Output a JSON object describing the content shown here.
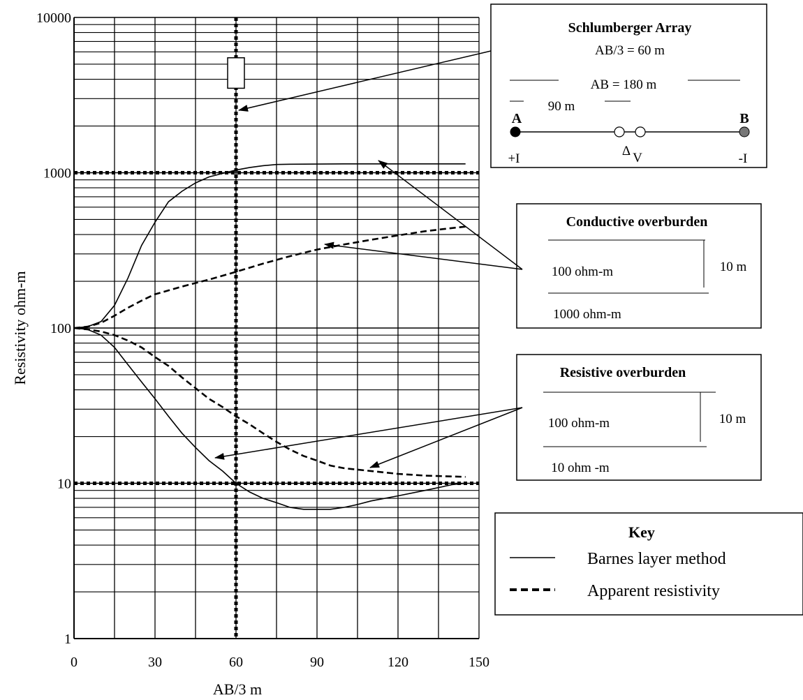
{
  "chart_data": {
    "type": "line",
    "xlabel": "AB/3 m",
    "ylabel": "Resistivity ohm-m",
    "xlim": [
      0,
      150
    ],
    "ylim": [
      1,
      10000
    ],
    "yscale": "log",
    "grid": true,
    "x_ticks": [
      "0",
      "30",
      "60",
      "90",
      "120",
      "150"
    ],
    "y_ticks": [
      "1",
      "10",
      "100",
      "1000",
      "10000"
    ],
    "series": [
      {
        "group": "conductive",
        "style": "solid",
        "x": [
          0,
          5,
          10,
          15,
          20,
          25,
          30,
          35,
          40,
          45,
          50,
          55,
          60,
          65,
          70,
          75,
          80,
          100,
          120,
          145
        ],
        "values": [
          100,
          102,
          110,
          140,
          210,
          340,
          480,
          650,
          760,
          860,
          940,
          990,
          1040,
          1080,
          1110,
          1130,
          1135,
          1140,
          1140,
          1140
        ]
      },
      {
        "group": "conductive",
        "style": "dashed",
        "x": [
          0,
          5,
          10,
          15,
          20,
          25,
          30,
          40,
          50,
          60,
          70,
          80,
          90,
          100,
          110,
          120,
          130,
          140,
          145
        ],
        "values": [
          100,
          102,
          108,
          120,
          135,
          150,
          165,
          185,
          205,
          230,
          260,
          290,
          320,
          345,
          370,
          395,
          420,
          440,
          450
        ]
      },
      {
        "group": "resistive",
        "style": "solid",
        "x": [
          0,
          5,
          10,
          15,
          20,
          25,
          30,
          35,
          40,
          45,
          50,
          55,
          60,
          65,
          70,
          75,
          80,
          85,
          90,
          95,
          100,
          105,
          110,
          120,
          130,
          140,
          145
        ],
        "values": [
          100,
          98,
          90,
          75,
          58,
          45,
          35,
          27,
          21,
          17,
          14,
          12,
          10,
          8.8,
          8,
          7.5,
          7,
          6.8,
          6.8,
          6.8,
          7,
          7.3,
          7.7,
          8.3,
          9,
          9.8,
          10
        ]
      },
      {
        "group": "resistive",
        "style": "dashed",
        "x": [
          0,
          5,
          10,
          15,
          20,
          25,
          30,
          35,
          40,
          45,
          50,
          55,
          60,
          65,
          70,
          75,
          80,
          85,
          90,
          95,
          100,
          110,
          120,
          130,
          145
        ],
        "values": [
          100,
          98,
          95,
          90,
          83,
          75,
          65,
          57,
          48,
          41,
          35,
          31,
          27,
          24,
          21,
          18.5,
          16.5,
          15,
          14,
          13,
          12.5,
          12,
          11.5,
          11.2,
          11
        ]
      }
    ],
    "markers": {
      "vline_x": 60,
      "hline_y": [
        1000,
        10
      ],
      "rect_y": [
        3500,
        5500
      ]
    }
  },
  "schlumberger": {
    "title": "Schlumberger Array",
    "spacing": "AB/3 = 60 m",
    "ab_length": "AB = 180 m",
    "mn_length": "90 m",
    "a_label": "A",
    "b_label": "B",
    "plus_i": "+I",
    "delta": "Δ",
    "v": "V",
    "minus_i": "-I"
  },
  "conductive_box": {
    "title": "Conductive overburden",
    "top_layer": "100 ohm-m",
    "bottom_layer": "1000 ohm-m",
    "thickness": "10 m"
  },
  "resistive_box": {
    "title": "Resistive overburden",
    "top_layer": "100 ohm-m",
    "bottom_layer": "10 ohm -m",
    "thickness": "10 m"
  },
  "key": {
    "title": "Key",
    "solid_label": "Barnes layer method",
    "dashed_label": "Apparent resistivity"
  },
  "colors": {
    "line": "#000000",
    "electrode_b": "#777777"
  }
}
